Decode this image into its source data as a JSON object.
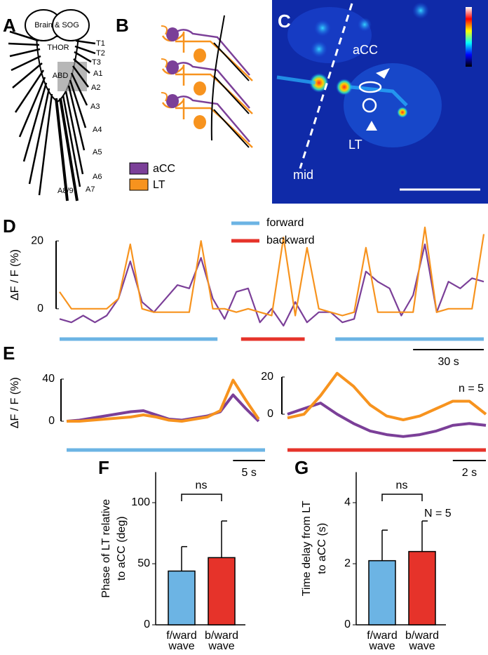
{
  "panel_A": {
    "label": "A",
    "brain": "Brain & SOG",
    "thorax": "THOR",
    "abdomen": "ABD",
    "segments": [
      "T1",
      "T2",
      "T3",
      "A1",
      "A2",
      "A3",
      "A4",
      "A5",
      "A6",
      "A7",
      "A8/9"
    ]
  },
  "panel_B": {
    "label": "B"
  },
  "panel_C": {
    "label": "C",
    "cells": [
      "aCC",
      "LT"
    ],
    "midline": "mid"
  },
  "chart_data": [
    {
      "type": "line",
      "panel": "D",
      "ylabel": "ΔF / F (%)",
      "x": [
        0,
        5,
        10,
        15,
        20,
        25,
        30,
        35,
        40,
        45,
        50,
        55,
        60,
        65,
        70,
        75,
        80,
        85,
        90,
        95,
        100,
        105,
        110,
        115,
        120,
        125,
        130,
        135,
        140,
        145,
        150,
        155,
        160,
        165,
        170,
        175,
        180
      ],
      "xlim": [
        0,
        180
      ],
      "ylim": [
        -5,
        25
      ],
      "yticks": [
        0,
        20
      ],
      "xscale": {
        "value": 30,
        "label": "30 s"
      },
      "series": [
        {
          "name": "aCC",
          "color": "#7b3f98",
          "values": [
            -3,
            -4,
            -2,
            -4,
            -2,
            3,
            14,
            2,
            -1,
            3,
            7,
            6,
            15,
            3,
            -3,
            5,
            6,
            -4,
            0,
            -5,
            2,
            -4,
            -1,
            -1,
            -4,
            -3,
            11,
            8,
            6,
            -2,
            4,
            19,
            -1,
            8,
            6,
            9,
            8
          ]
        },
        {
          "name": "LT",
          "color": "#f7931e",
          "values": [
            5,
            0,
            0,
            0,
            0,
            3,
            19,
            0,
            -1,
            -1,
            -1,
            -1,
            20,
            0,
            0,
            -1,
            0,
            -1,
            -2,
            21,
            -2,
            18,
            0,
            -1,
            -2,
            -1,
            18,
            -1,
            -1,
            -1,
            -1,
            24,
            -1,
            0,
            0,
            0,
            22
          ]
        }
      ],
      "bands": [
        {
          "name": "forward",
          "color": "#6cb4e4",
          "x": [
            0,
            67
          ]
        },
        {
          "name": "backward",
          "color": "#e6332a",
          "x": [
            77,
            104
          ]
        },
        {
          "color": "#6cb4e4",
          "x": [
            117,
            180
          ]
        }
      ]
    },
    {
      "type": "line",
      "panel": "E",
      "ylabel": "ΔF / F (%)",
      "x": [
        0,
        2,
        4,
        6,
        8,
        10,
        12,
        14,
        16,
        18,
        20,
        22,
        24,
        26,
        28,
        30
      ],
      "xlim": [
        0,
        31
      ],
      "ylim": [
        -10,
        45
      ],
      "yticks": [
        0,
        40
      ],
      "xscale": {
        "value": 5,
        "label": "5 s"
      },
      "series": [
        {
          "color": "#7b3f98",
          "values": [
            0,
            1,
            3,
            5,
            7,
            9,
            10,
            6,
            2,
            1,
            3,
            5,
            9,
            25,
            12,
            0
          ]
        },
        {
          "color": "#f7931e",
          "values": [
            0,
            0,
            1,
            2,
            3,
            4,
            6,
            4,
            1,
            0,
            2,
            4,
            10,
            39,
            20,
            2
          ]
        }
      ],
      "bands": [
        {
          "color": "#6cb4e4",
          "x": [
            0,
            31
          ]
        }
      ]
    },
    {
      "type": "line",
      "x": [
        0,
        1,
        2,
        3,
        4,
        5,
        6,
        7,
        8,
        9,
        10,
        11,
        12
      ],
      "xlim": [
        0,
        12
      ],
      "ylim": [
        -15,
        25
      ],
      "yticks": [
        0,
        20
      ],
      "xscale": {
        "value": 2,
        "label": "2 s"
      },
      "annotations": [
        "n = 5"
      ],
      "series": [
        {
          "color": "#7b3f98",
          "values": [
            0,
            3,
            6,
            0,
            -5,
            -9,
            -11,
            -12,
            -11,
            -9,
            -6,
            -5,
            -6
          ]
        },
        {
          "color": "#f7931e",
          "values": [
            -2,
            0,
            10,
            22,
            15,
            5,
            -1,
            -3,
            -1,
            3,
            7,
            7,
            0
          ]
        }
      ],
      "bands": [
        {
          "color": "#e6332a",
          "x": [
            0,
            12
          ]
        }
      ]
    },
    {
      "type": "bar",
      "panel": "F",
      "ylabel": [
        "Phase of LT relative",
        "to aCC (deg)"
      ],
      "categories": [
        [
          "f/ward",
          "wave"
        ],
        [
          "b/ward",
          "wave"
        ]
      ],
      "values": [
        44,
        55
      ],
      "errors": [
        20,
        30
      ],
      "colors": [
        "#6cb4e4",
        "#e6332a"
      ],
      "ylim": [
        0,
        125
      ],
      "yticks": [
        0,
        50,
        100
      ],
      "annotations": [
        "ns"
      ]
    },
    {
      "type": "bar",
      "panel": "G",
      "ylabel": [
        "Time delay from LT",
        "to aCC (s)"
      ],
      "categories": [
        [
          "f/ward",
          "wave"
        ],
        [
          "b/ward",
          "wave"
        ]
      ],
      "values": [
        2.1,
        2.4
      ],
      "errors": [
        1.0,
        1.0
      ],
      "colors": [
        "#6cb4e4",
        "#e6332a"
      ],
      "ylim": [
        0,
        5
      ],
      "yticks": [
        0,
        2,
        4
      ],
      "annotations": [
        "ns",
        "N = 5"
      ]
    }
  ]
}
